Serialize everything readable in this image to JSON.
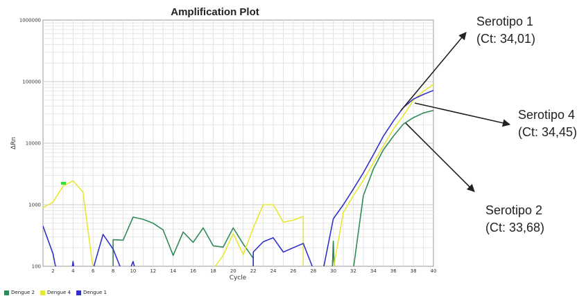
{
  "chart_data": {
    "type": "line",
    "title": "Amplification Plot",
    "xlabel": "Cycle",
    "ylabel": "ΔRn",
    "yscale": "log",
    "xlim": [
      1,
      40
    ],
    "ylim": [
      100,
      1000000
    ],
    "x_ticks": [
      "2",
      "4",
      "6",
      "8",
      "10",
      "12",
      "14",
      "16",
      "18",
      "20",
      "22",
      "24",
      "26",
      "28",
      "30",
      "32",
      "34",
      "36",
      "38",
      "40"
    ],
    "y_ticks": [
      "100",
      "1000",
      "10000",
      "100000",
      "1000000"
    ],
    "grid": true,
    "legend_position": "bottom-left",
    "series": [
      {
        "name": "Dengue 2",
        "color": "#2e8b57",
        "points": [
          [
            8,
            90
          ],
          [
            8,
            270
          ],
          [
            9,
            265
          ],
          [
            10,
            630
          ],
          [
            11,
            580
          ],
          [
            12,
            500
          ],
          [
            13,
            390
          ],
          [
            14,
            150
          ],
          [
            15,
            360
          ],
          [
            16,
            245
          ],
          [
            17,
            420
          ],
          [
            18,
            215
          ],
          [
            19,
            205
          ],
          [
            20,
            420
          ],
          [
            21,
            230
          ],
          [
            22,
            135
          ],
          [
            22,
            90
          ],
          [
            29.9,
            90
          ],
          [
            30,
            255
          ],
          [
            30.1,
            90
          ],
          [
            32,
            90
          ],
          [
            33,
            1400
          ],
          [
            34,
            3800
          ],
          [
            35,
            7800
          ],
          [
            36,
            13000
          ],
          [
            37,
            20500
          ],
          [
            38,
            26000
          ],
          [
            39,
            31000
          ],
          [
            40,
            34000
          ]
        ]
      },
      {
        "name": "Dengue 4",
        "color": "#e8e832",
        "points": [
          [
            1,
            900
          ],
          [
            2,
            1100
          ],
          [
            3,
            2000
          ],
          [
            4,
            2450
          ],
          [
            5,
            1600
          ],
          [
            6,
            90
          ],
          [
            18,
            90
          ],
          [
            19,
            150
          ],
          [
            20,
            340
          ],
          [
            21,
            155
          ],
          [
            22,
            420
          ],
          [
            23,
            1000
          ],
          [
            24,
            1000
          ],
          [
            25,
            520
          ],
          [
            26,
            560
          ],
          [
            27,
            650
          ],
          [
            27,
            90
          ],
          [
            30,
            90
          ],
          [
            31,
            750
          ],
          [
            32,
            1400
          ],
          [
            33,
            2500
          ],
          [
            34,
            4800
          ],
          [
            35,
            9000
          ],
          [
            36,
            17000
          ],
          [
            37,
            28000
          ],
          [
            38,
            50000
          ],
          [
            39,
            70000
          ],
          [
            40,
            90000
          ]
        ]
      },
      {
        "name": "Dengue 1",
        "color": "#3030c8",
        "points": [
          [
            1,
            450
          ],
          [
            2,
            160
          ],
          [
            2.3,
            90
          ],
          [
            3.9,
            90
          ],
          [
            4,
            120
          ],
          [
            4.1,
            90
          ],
          [
            6,
            90
          ],
          [
            7,
            330
          ],
          [
            8,
            190
          ],
          [
            8.8,
            90
          ],
          [
            9.7,
            90
          ],
          [
            10,
            120
          ],
          [
            10.2,
            90
          ],
          [
            22,
            90
          ],
          [
            22,
            170
          ],
          [
            23,
            250
          ],
          [
            24,
            290
          ],
          [
            25,
            170
          ],
          [
            26,
            200
          ],
          [
            27,
            235
          ],
          [
            28,
            90
          ],
          [
            29,
            90
          ],
          [
            30,
            590
          ],
          [
            31,
            1000
          ],
          [
            32,
            1800
          ],
          [
            33,
            3300
          ],
          [
            34,
            6500
          ],
          [
            35,
            13000
          ],
          [
            36,
            23000
          ],
          [
            37,
            38000
          ],
          [
            38,
            52000
          ],
          [
            39,
            62000
          ],
          [
            40,
            72000
          ]
        ]
      }
    ],
    "annotations": [
      {
        "line1": "Serotipo 1",
        "line2": "(Ct: 34,01)"
      },
      {
        "line1": "Serotipo 4",
        "line2": "(Ct: 34,45)"
      },
      {
        "line1": "Serotipo 2",
        "line2": "(Ct: 33,68)"
      }
    ]
  }
}
